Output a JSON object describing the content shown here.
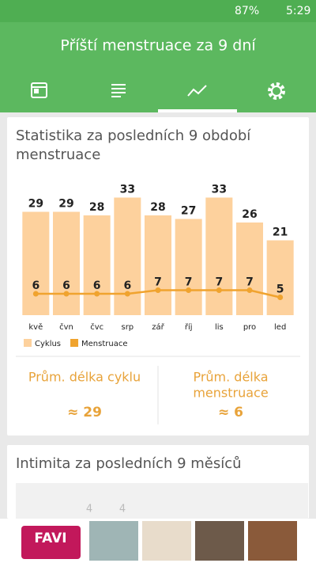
{
  "status_bar": {
    "battery": "87%",
    "time": "5:29"
  },
  "header": {
    "title": "Příští menstruace za 9 dní"
  },
  "stats_card": {
    "title_line1": "Statistika za posledních 9 období",
    "title_line2": "menstruace",
    "avg_cycle_label": "Prům. délka cyklu",
    "avg_cycle_value": "≈ 29",
    "avg_menstruation_label_line1": "Prům. délka",
    "avg_menstruation_label_line2": "menstruace",
    "avg_menstruation_value": "≈ 6"
  },
  "chart_data": {
    "type": "bar-line",
    "categories": [
      "kvě",
      "čvn",
      "čvc",
      "srp",
      "zář",
      "říj",
      "lis",
      "pro",
      "led"
    ],
    "series": [
      {
        "name": "Cyklus",
        "type": "bar",
        "color": "#fdd19d",
        "values": [
          29,
          29,
          28,
          33,
          28,
          27,
          33,
          26,
          21
        ]
      },
      {
        "name": "Menstruace",
        "type": "line",
        "color": "#f0a32e",
        "values": [
          6,
          6,
          6,
          6,
          7,
          7,
          7,
          7,
          5
        ]
      }
    ],
    "ylim": [
      0,
      36
    ],
    "legend": "bottom-left"
  },
  "intimacy_card": {
    "title": "Intimita za posledních 9 měsíců",
    "labels": [
      "4",
      "4"
    ]
  },
  "ad": {
    "brand": "FAVI"
  }
}
